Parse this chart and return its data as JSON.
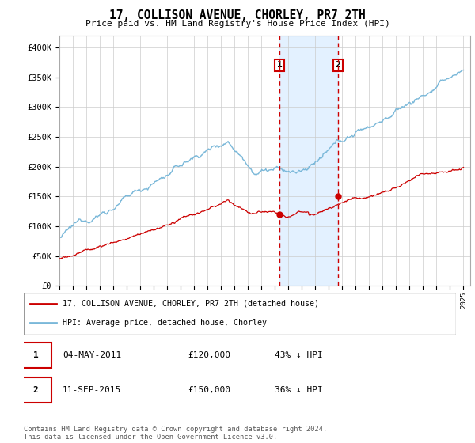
{
  "title": "17, COLLISON AVENUE, CHORLEY, PR7 2TH",
  "subtitle": "Price paid vs. HM Land Registry's House Price Index (HPI)",
  "ylabel_ticks": [
    "£0",
    "£50K",
    "£100K",
    "£150K",
    "£200K",
    "£250K",
    "£300K",
    "£350K",
    "£400K"
  ],
  "ytick_values": [
    0,
    50000,
    100000,
    150000,
    200000,
    250000,
    300000,
    350000,
    400000
  ],
  "ylim": [
    0,
    420000
  ],
  "xlim_start": 1995.0,
  "xlim_end": 2025.5,
  "hpi_color": "#7ab8d9",
  "price_color": "#cc0000",
  "sale1_date": 2011.34,
  "sale1_price": 120000,
  "sale1_label": "1",
  "sale2_date": 2015.7,
  "sale2_price": 150000,
  "sale2_label": "2",
  "shade_color": "#ddeeff",
  "dashed_color": "#cc0000",
  "legend_line1": "17, COLLISON AVENUE, CHORLEY, PR7 2TH (detached house)",
  "legend_line2": "HPI: Average price, detached house, Chorley",
  "table_row1_num": "1",
  "table_row1_date": "04-MAY-2011",
  "table_row1_price": "£120,000",
  "table_row1_pct": "43% ↓ HPI",
  "table_row2_num": "2",
  "table_row2_date": "11-SEP-2015",
  "table_row2_price": "£150,000",
  "table_row2_pct": "36% ↓ HPI",
  "footnote": "Contains HM Land Registry data © Crown copyright and database right 2024.\nThis data is licensed under the Open Government Licence v3.0."
}
